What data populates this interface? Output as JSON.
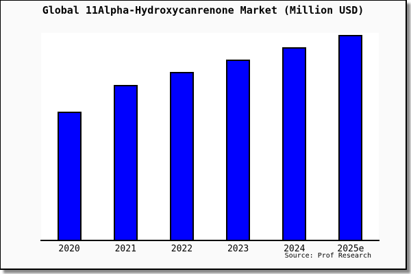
{
  "panel": {
    "background": "#fafafa",
    "border_color": "#000000",
    "shadow_color": "#8a8a8a"
  },
  "chart_data": {
    "type": "bar",
    "title": "Global 11Alpha-Hydroxycanrenone Market (Million USD)",
    "categories": [
      "2020",
      "2021",
      "2022",
      "2023",
      "2024",
      "2025e"
    ],
    "values": [
      62,
      75,
      81,
      87,
      93,
      99
    ],
    "xlabel": "",
    "ylabel": "",
    "ylim": [
      0,
      100
    ],
    "y_tick_labels_visible": false,
    "grid": false,
    "legend_position": "none",
    "plot_background": "#ffffff",
    "bar_color": "#0000ff",
    "bar_border_color": "#000000",
    "axis_color": "#000000",
    "note": "No y-axis tick labels are shown in the image; values are relative estimates of bar heights (percent of plot height)."
  },
  "source": {
    "text": "Source: Prof Research"
  }
}
